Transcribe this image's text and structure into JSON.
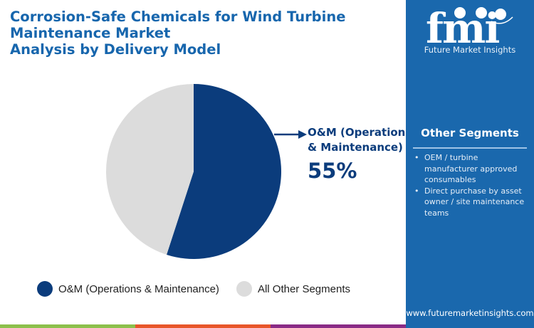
{
  "title_lines": [
    "Corrosion-Safe Chemicals for Wind Turbine",
    "Maintenance Market",
    "Analysis by Delivery Model"
  ],
  "chart_data": {
    "type": "pie",
    "title": "Corrosion-Safe Chemicals for Wind Turbine Maintenance Market Analysis by Delivery Model",
    "slices": [
      {
        "label": "O&M (Operations & Maintenance)",
        "value": 55,
        "color": "#0b3c7c"
      },
      {
        "label": "All Other Segments",
        "value": 45,
        "color": "#dcdcdc"
      }
    ],
    "legend_placement": "bottom"
  },
  "callout": {
    "line1": "O&M (Operations",
    "line2": "& Maintenance)",
    "value": "55%"
  },
  "legend": [
    {
      "label": "O&M (Operations & Maintenance)",
      "color": "#0b3c7c"
    },
    {
      "label": "All Other Segments",
      "color": "#dcdcdc"
    }
  ],
  "panel": {
    "logo_text": "fmi",
    "brand": "Future Market Insights",
    "heading": "Other Segments",
    "bullets": [
      "OEM / turbine manufacturer approved consumables",
      "Direct purchase by asset owner / site maintenance teams"
    ],
    "url": "www.futuremarketinsights.com",
    "background": "#1a68ad"
  },
  "strip_colors": [
    "#8cc04b",
    "#e8562a",
    "#8a2b86"
  ]
}
